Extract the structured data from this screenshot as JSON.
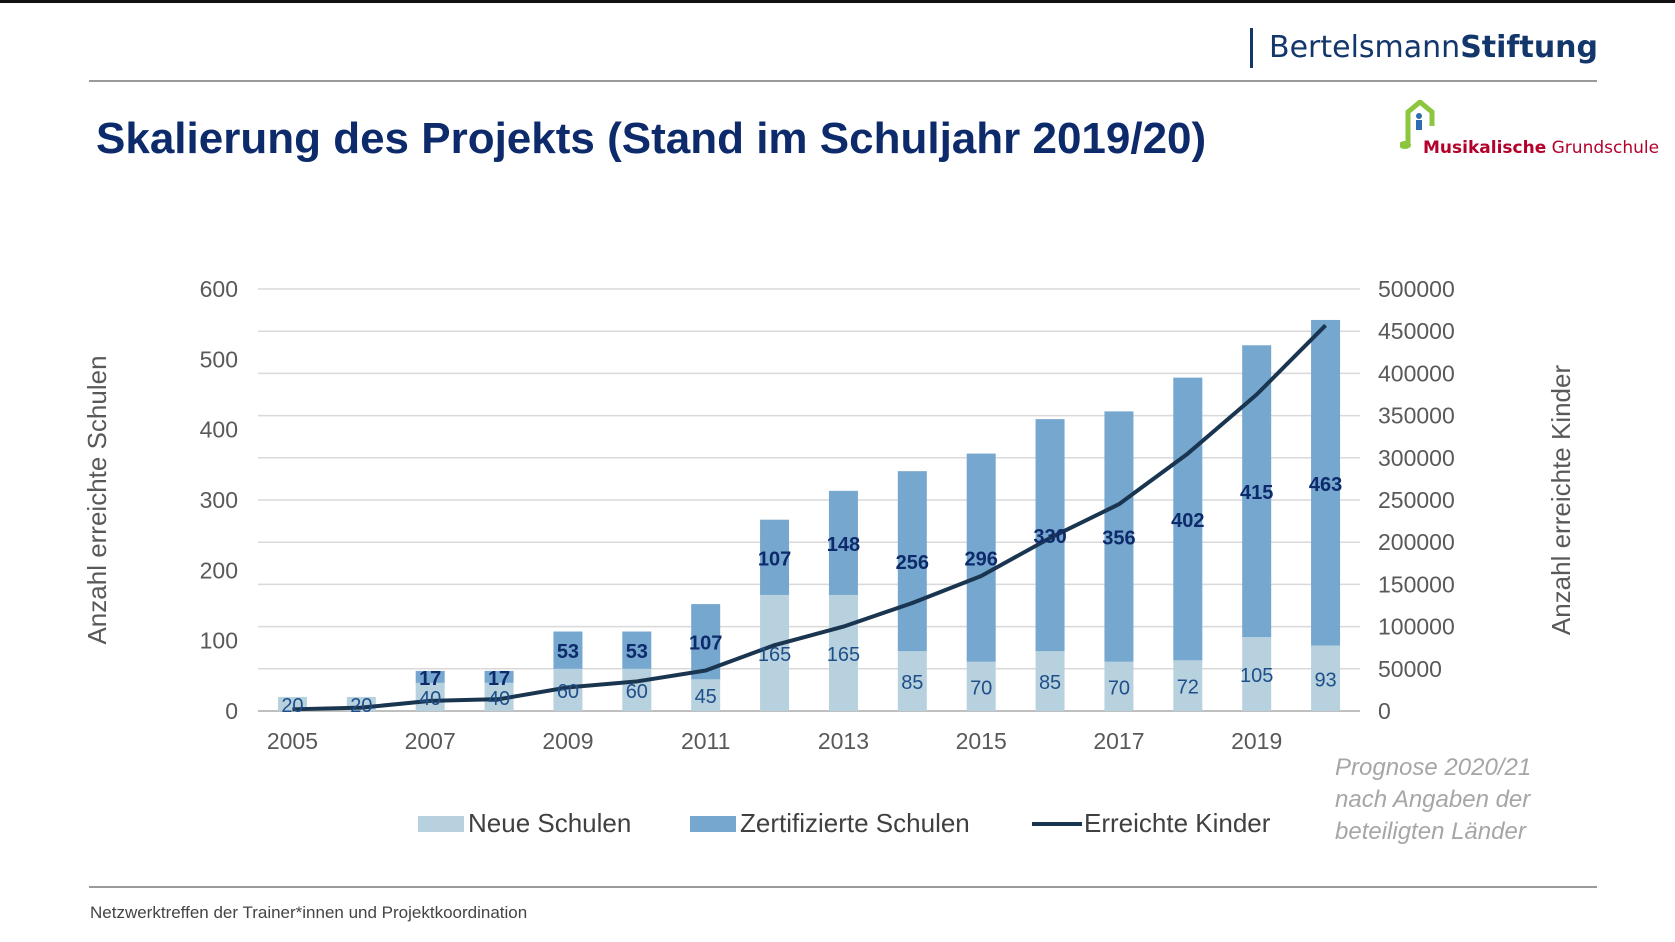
{
  "header": {
    "brand_regular": "Bertelsmann",
    "brand_bold": "Stiftung",
    "title": "Skalierung des Projekts (Stand im Schuljahr 2019/20)",
    "logo_bold": "Musikalische",
    "logo_regular": " Grundschule"
  },
  "footer": {
    "text": "Netzwerktreffen der Trainer*innen und Projektkoordination"
  },
  "note": {
    "lines": [
      "Prognose 2020/21",
      "nach Angaben der",
      "beteiligten Länder"
    ]
  },
  "colors": {
    "neue": "#b8d1de",
    "zert": "#76a7cf",
    "line": "#1a3550",
    "title": "#0d2a6b",
    "label_bold": "#0d2a6b",
    "label": "#1e4f8a"
  },
  "chart_data": {
    "type": "bar",
    "stacked": true,
    "x": [
      2005,
      2006,
      2007,
      2008,
      2009,
      2010,
      2011,
      2012,
      2013,
      2014,
      2015,
      2016,
      2017,
      2018,
      2019,
      2020
    ],
    "x_tick_labels": [
      "2005",
      "",
      "2007",
      "",
      "2009",
      "",
      "2011",
      "",
      "2013",
      "",
      "2015",
      "",
      "2017",
      "",
      "2019",
      ""
    ],
    "series": [
      {
        "name": "Neue Schulen",
        "axis": "left",
        "type": "bar",
        "values": [
          20,
          20,
          40,
          40,
          60,
          60,
          45,
          165,
          165,
          85,
          70,
          85,
          70,
          72,
          105,
          93
        ],
        "labels": [
          "20",
          "20",
          "40",
          "40",
          "60",
          "60",
          "45",
          "165",
          "165",
          "85",
          "70",
          "85",
          "70",
          "72",
          "105",
          "93"
        ]
      },
      {
        "name": "Zertifizierte Schulen",
        "axis": "left",
        "type": "bar",
        "values": [
          0,
          0,
          17,
          17,
          53,
          53,
          107,
          107,
          148,
          256,
          296,
          330,
          356,
          402,
          415,
          463
        ],
        "labels": [
          "",
          "",
          "17",
          "17",
          "53",
          "53",
          "107",
          "107",
          "148",
          "256",
          "296",
          "330",
          "356",
          "402",
          "415",
          "463"
        ]
      },
      {
        "name": "Erreichte Kinder",
        "axis": "right",
        "type": "line",
        "values": [
          2000,
          4000,
          12000,
          14000,
          28000,
          35000,
          48000,
          78000,
          100000,
          128000,
          160000,
          205000,
          245000,
          305000,
          375000,
          457000
        ]
      }
    ],
    "ylabel_left": "Anzahl erreichte Schulen",
    "ylabel_right": "Anzahl erreichte Kinder",
    "ylim_left": [
      0,
      600
    ],
    "yticks_left": [
      0,
      100,
      200,
      300,
      400,
      500,
      600
    ],
    "ylim_right": [
      0,
      500000
    ],
    "yticks_right": [
      0,
      50000,
      100000,
      150000,
      200000,
      250000,
      300000,
      350000,
      400000,
      450000,
      500000
    ],
    "grid": true,
    "legend_position": "bottom"
  }
}
